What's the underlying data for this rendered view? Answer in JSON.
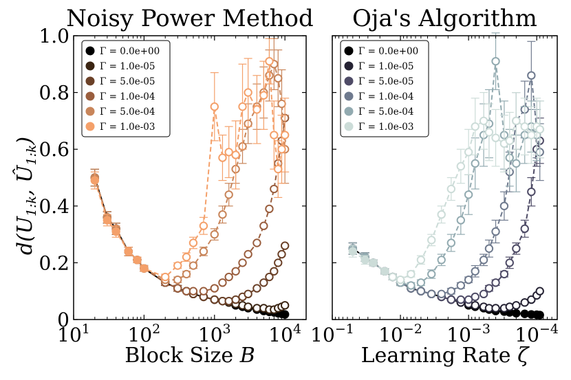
{
  "figure": {
    "ylabel": "d(U_{1:k}, Û_{1:k})"
  },
  "chart_data": [
    {
      "type": "line",
      "title": "Noisy Power Method",
      "xlabel": "Block Size B",
      "xlabel_main": "Block Size ",
      "xlabel_var": "B",
      "xscale": "log",
      "xlim": [
        10,
        20000
      ],
      "ylim": [
        0,
        1.0
      ],
      "xticks": [
        10,
        100,
        1000,
        10000
      ],
      "xtick_labels": [
        {
          "base": "10",
          "exp": "1"
        },
        {
          "base": "10",
          "exp": "2"
        },
        {
          "base": "10",
          "exp": "3"
        },
        {
          "base": "10",
          "exp": "4"
        }
      ],
      "yticks": [
        0,
        0.2,
        0.4,
        0.6,
        0.8,
        1.0
      ],
      "ytick_labels": [
        "0",
        "0.2",
        "0.4",
        "0.6",
        "0.8",
        "1.0"
      ],
      "legend_position": "top-left",
      "x": [
        20,
        30,
        40,
        60,
        80,
        100,
        200,
        300,
        400,
        500,
        700,
        1000,
        1300,
        1600,
        2000,
        2500,
        3000,
        4000,
        5000,
        6000,
        7000,
        8000,
        9000,
        10000
      ],
      "series": [
        {
          "name": "Γ = 0.0e+00",
          "color": "#000000",
          "values": [
            0.5,
            0.36,
            0.32,
            0.24,
            0.21,
            0.18,
            0.13,
            0.11,
            0.1,
            0.09,
            0.08,
            0.07,
            0.065,
            0.06,
            0.05,
            0.045,
            0.04,
            0.035,
            0.03,
            0.027,
            0.025,
            0.022,
            0.02,
            0.018
          ],
          "err": [
            0.03,
            0.02,
            0.02,
            0.015,
            0.01,
            0.01,
            0.01,
            0.01,
            0.005,
            0.005,
            0.005,
            0.005,
            0.005,
            0.005,
            0.005,
            0.005,
            0.005,
            0.005,
            0.005,
            0.005,
            0.005,
            0.005,
            0.005,
            0.005
          ]
        },
        {
          "name": "Γ = 1.0e-05",
          "color": "#3a2412",
          "values": [
            0.5,
            0.36,
            0.32,
            0.24,
            0.21,
            0.18,
            0.13,
            0.11,
            0.1,
            0.09,
            0.08,
            0.07,
            0.065,
            0.06,
            0.055,
            0.05,
            0.045,
            0.04,
            0.04,
            0.035,
            0.035,
            0.04,
            0.045,
            0.05
          ],
          "err": [
            0.03,
            0.02,
            0.02,
            0.015,
            0.01,
            0.01,
            0.01,
            0.01,
            0.005,
            0.005,
            0.005,
            0.005,
            0.005,
            0.005,
            0.005,
            0.005,
            0.005,
            0.005,
            0.005,
            0.005,
            0.005,
            0.005,
            0.005,
            0.005
          ]
        },
        {
          "name": "Γ = 5.0e-05",
          "color": "#6b4128",
          "values": [
            0.5,
            0.36,
            0.32,
            0.24,
            0.21,
            0.18,
            0.13,
            0.11,
            0.1,
            0.09,
            0.08,
            0.07,
            0.065,
            0.065,
            0.07,
            0.08,
            0.09,
            0.11,
            0.13,
            0.15,
            0.17,
            0.2,
            0.23,
            0.26
          ],
          "err": [
            0.03,
            0.02,
            0.02,
            0.015,
            0.01,
            0.01,
            0.01,
            0.01,
            0.005,
            0.005,
            0.005,
            0.005,
            0.005,
            0.005,
            0.005,
            0.005,
            0.005,
            0.005,
            0.005,
            0.005,
            0.005,
            0.005,
            0.005,
            0.005
          ]
        },
        {
          "name": "Γ = 1.0e-04",
          "color": "#9a5e3e",
          "values": [
            0.5,
            0.36,
            0.32,
            0.24,
            0.21,
            0.18,
            0.13,
            0.11,
            0.1,
            0.1,
            0.1,
            0.11,
            0.13,
            0.15,
            0.17,
            0.2,
            0.23,
            0.27,
            0.33,
            0.39,
            0.46,
            0.55,
            0.63,
            0.71
          ],
          "err": [
            0.03,
            0.02,
            0.02,
            0.015,
            0.01,
            0.01,
            0.01,
            0.01,
            0.005,
            0.005,
            0.005,
            0.005,
            0.005,
            0.005,
            0.005,
            0.005,
            0.005,
            0.005,
            0.005,
            0.005,
            0.005,
            0.005,
            0.005,
            0.005
          ]
        },
        {
          "name": "Γ = 5.0e-04",
          "color": "#c8855a",
          "values": [
            0.5,
            0.36,
            0.32,
            0.24,
            0.21,
            0.18,
            0.14,
            0.14,
            0.16,
            0.19,
            0.24,
            0.3,
            0.37,
            0.44,
            0.53,
            0.61,
            0.69,
            0.75,
            0.8,
            0.86,
            0.9,
            0.85,
            0.76,
            0.6
          ],
          "err": [
            0.03,
            0.02,
            0.02,
            0.015,
            0.01,
            0.01,
            0.01,
            0.01,
            0.01,
            0.01,
            0.015,
            0.02,
            0.03,
            0.04,
            0.05,
            0.06,
            0.07,
            0.08,
            0.09,
            0.09,
            0.09,
            0.1,
            0.12,
            0.12
          ]
        },
        {
          "name": "Γ = 1.0e-03",
          "color": "#f4a06a",
          "values": [
            0.49,
            0.35,
            0.31,
            0.24,
            0.21,
            0.18,
            0.15,
            0.19,
            0.22,
            0.27,
            0.33,
            0.75,
            0.57,
            0.59,
            0.58,
            0.75,
            0.8,
            0.74,
            0.79,
            0.91,
            0.65,
            0.53,
            0.6,
            0.65
          ],
          "err": [
            0.03,
            0.02,
            0.02,
            0.015,
            0.01,
            0.01,
            0.01,
            0.01,
            0.015,
            0.02,
            0.03,
            0.12,
            0.08,
            0.09,
            0.12,
            0.15,
            0.12,
            0.12,
            0.12,
            0.08,
            0.12,
            0.1,
            0.12,
            0.13
          ]
        }
      ],
      "legend": [
        "Γ = 0.0e+00",
        "Γ = 1.0e-05",
        "Γ = 5.0e-05",
        "Γ = 1.0e-04",
        "Γ = 5.0e-04",
        "Γ = 1.0e-03"
      ]
    },
    {
      "type": "line",
      "title": "Oja's Algorithm",
      "xlabel": "Learning Rate ζ",
      "xlabel_main": "Learning Rate ",
      "xlabel_var": "ζ",
      "xscale": "log-reversed",
      "xlim": [
        0.1,
        5e-05
      ],
      "ylim": [
        0,
        1.0
      ],
      "xticks": [
        0.1,
        0.01,
        0.001,
        0.0001
      ],
      "xtick_labels": [
        {
          "base": "10",
          "exp": "−1"
        },
        {
          "base": "10",
          "exp": "−2"
        },
        {
          "base": "10",
          "exp": "−3"
        },
        {
          "base": "10",
          "exp": "−4"
        }
      ],
      "yticks": [
        0,
        0.2,
        0.4,
        0.6,
        0.8,
        1.0
      ],
      "ytick_labels": [],
      "legend_position": "top-left",
      "x": [
        0.05,
        0.033,
        0.025,
        0.017,
        0.013,
        0.01,
        0.007,
        0.005,
        0.0035,
        0.0025,
        0.0018,
        0.0013,
        0.001,
        0.0008,
        0.0006,
        0.0005,
        0.0004,
        0.0003,
        0.00025,
        0.0002,
        0.00015,
        0.00012,
        0.0001,
        9e-05
      ],
      "series": [
        {
          "name": "Γ = 0.0e+00",
          "color": "#000000",
          "values": [
            0.25,
            0.22,
            0.2,
            0.17,
            0.15,
            0.13,
            0.11,
            0.1,
            0.09,
            0.08,
            0.07,
            0.06,
            0.05,
            0.045,
            0.04,
            0.035,
            0.03,
            0.028,
            0.025,
            0.022,
            0.02,
            0.018,
            0.017,
            0.016
          ],
          "err": [
            0.02,
            0.015,
            0.01,
            0.01,
            0.01,
            0.01,
            0.005,
            0.005,
            0.005,
            0.005,
            0.005,
            0.005,
            0.005,
            0.005,
            0.005,
            0.005,
            0.005,
            0.005,
            0.005,
            0.005,
            0.005,
            0.005,
            0.005,
            0.005
          ]
        },
        {
          "name": "Γ = 1.0e-05",
          "color": "#252233",
          "values": [
            0.25,
            0.22,
            0.2,
            0.17,
            0.15,
            0.13,
            0.11,
            0.1,
            0.09,
            0.08,
            0.07,
            0.06,
            0.055,
            0.05,
            0.045,
            0.04,
            0.04,
            0.04,
            0.045,
            0.05,
            0.06,
            0.07,
            0.085,
            0.1
          ],
          "err": [
            0.02,
            0.015,
            0.01,
            0.01,
            0.01,
            0.01,
            0.005,
            0.005,
            0.005,
            0.005,
            0.005,
            0.005,
            0.005,
            0.005,
            0.005,
            0.005,
            0.005,
            0.005,
            0.005,
            0.005,
            0.005,
            0.005,
            0.005,
            0.005
          ]
        },
        {
          "name": "Γ = 5.0e-05",
          "color": "#4e4b66",
          "values": [
            0.25,
            0.22,
            0.2,
            0.17,
            0.15,
            0.13,
            0.11,
            0.1,
            0.09,
            0.08,
            0.07,
            0.07,
            0.07,
            0.08,
            0.09,
            0.11,
            0.13,
            0.16,
            0.2,
            0.25,
            0.32,
            0.45,
            0.6,
            0.63
          ],
          "err": [
            0.02,
            0.015,
            0.01,
            0.01,
            0.01,
            0.01,
            0.005,
            0.005,
            0.005,
            0.005,
            0.005,
            0.005,
            0.005,
            0.005,
            0.005,
            0.01,
            0.01,
            0.01,
            0.02,
            0.02,
            0.03,
            0.05,
            0.06,
            0.08
          ]
        },
        {
          "name": "Γ = 1.0e-04",
          "color": "#6f7a8e",
          "values": [
            0.25,
            0.22,
            0.2,
            0.17,
            0.15,
            0.13,
            0.11,
            0.1,
            0.09,
            0.09,
            0.1,
            0.12,
            0.14,
            0.17,
            0.21,
            0.25,
            0.31,
            0.4,
            0.52,
            0.7,
            0.74,
            0.86,
            0.67,
            0.59
          ],
          "err": [
            0.02,
            0.015,
            0.01,
            0.01,
            0.01,
            0.01,
            0.005,
            0.005,
            0.005,
            0.005,
            0.01,
            0.01,
            0.01,
            0.02,
            0.02,
            0.03,
            0.04,
            0.05,
            0.07,
            0.1,
            0.1,
            0.12,
            0.1,
            0.1
          ]
        },
        {
          "name": "Γ = 5.0e-04",
          "color": "#92aab0",
          "values": [
            0.25,
            0.22,
            0.2,
            0.17,
            0.15,
            0.13,
            0.12,
            0.13,
            0.16,
            0.21,
            0.27,
            0.35,
            0.44,
            0.55,
            0.65,
            0.69,
            0.91,
            0.65,
            0.57,
            0.55,
            0.65,
            0.68,
            0.65,
            0.67
          ],
          "err": [
            0.02,
            0.015,
            0.01,
            0.01,
            0.01,
            0.01,
            0.01,
            0.01,
            0.015,
            0.02,
            0.03,
            0.05,
            0.07,
            0.09,
            0.11,
            0.12,
            0.1,
            0.12,
            0.1,
            0.1,
            0.1,
            0.09,
            0.09,
            0.1
          ]
        },
        {
          "name": "Γ = 1.0e-03",
          "color": "#ccdcd8",
          "values": [
            0.24,
            0.21,
            0.2,
            0.17,
            0.15,
            0.14,
            0.16,
            0.21,
            0.28,
            0.37,
            0.46,
            0.54,
            0.59,
            0.68,
            0.7,
            0.66,
            0.64,
            0.62,
            0.63,
            0.7,
            0.68,
            0.65,
            0.68,
            0.67
          ],
          "err": [
            0.02,
            0.015,
            0.01,
            0.01,
            0.01,
            0.01,
            0.01,
            0.015,
            0.02,
            0.03,
            0.04,
            0.06,
            0.08,
            0.1,
            0.1,
            0.1,
            0.1,
            0.1,
            0.1,
            0.1,
            0.1,
            0.1,
            0.1,
            0.1
          ]
        }
      ],
      "legend": [
        "Γ = 0.0e+00",
        "Γ = 1.0e-05",
        "Γ = 5.0e-05",
        "Γ = 1.0e-04",
        "Γ = 5.0e-04",
        "Γ = 1.0e-03"
      ]
    }
  ]
}
